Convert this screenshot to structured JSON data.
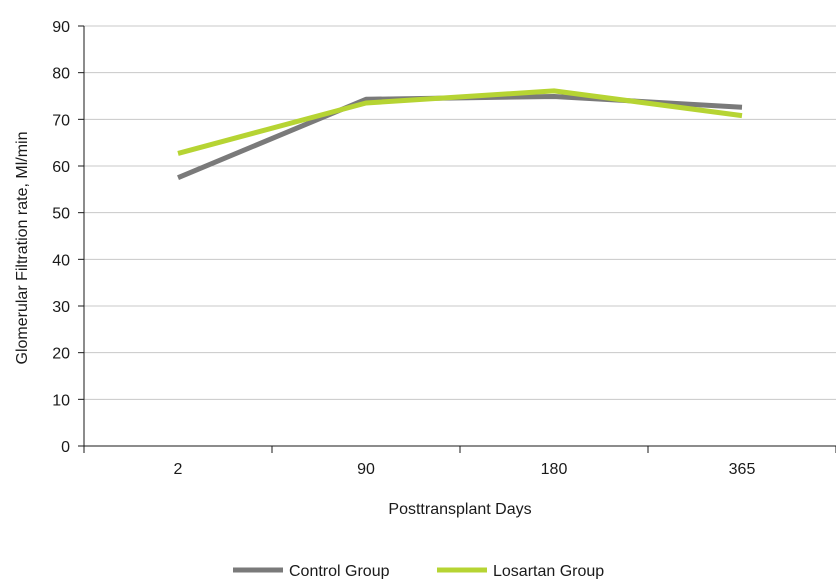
{
  "chart_data": {
    "type": "line",
    "title": "",
    "xlabel": "Posttransplant Days",
    "ylabel": "Glomerular Filtration rate, Ml/min",
    "categories": [
      "2",
      "90",
      "180",
      "365"
    ],
    "yticks": [
      "0",
      "10",
      "20",
      "30",
      "40",
      "50",
      "60",
      "70",
      "80",
      "90"
    ],
    "ylim": [
      0,
      90
    ],
    "grid": true,
    "legend_position": "bottom",
    "series": [
      {
        "name": "Control Group",
        "color": "#7a7a7a",
        "values": [
          57.5,
          74.3,
          74.9,
          72.6
        ]
      },
      {
        "name": "Losartan Group",
        "color": "#b6d433",
        "values": [
          62.7,
          73.5,
          76.1,
          70.8
        ]
      }
    ]
  }
}
